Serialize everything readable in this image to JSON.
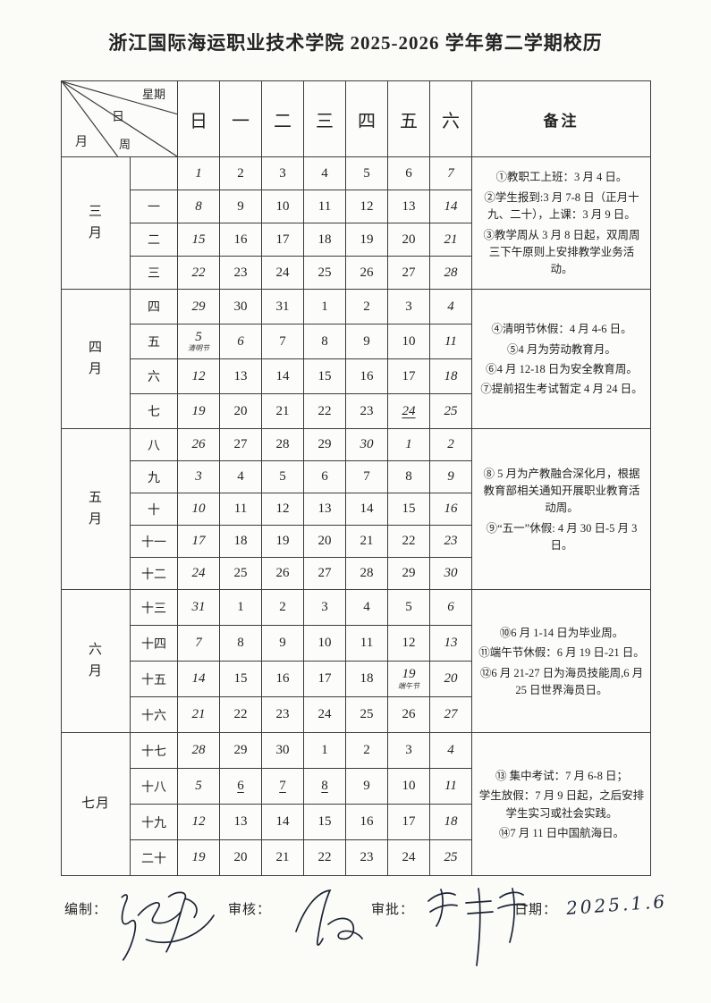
{
  "title": "浙江国际海运职业技术学院 2025-2026 学年第二学期校历",
  "table": {
    "corner": {
      "week_label": "星期",
      "day_label": "日",
      "month_label": "月",
      "zhou_label": "周"
    },
    "day_headers": [
      "日",
      "一",
      "二",
      "三",
      "四",
      "五",
      "六"
    ],
    "remarks_header": "备注",
    "months": [
      {
        "name": "三月",
        "stacked": true,
        "weeks": [
          {
            "label": "",
            "days": [
              "1|i",
              "2",
              "3",
              "4",
              "5",
              "6",
              "7|i"
            ]
          },
          {
            "label": "一",
            "days": [
              "8|i",
              "9",
              "10",
              "11",
              "12",
              "13",
              "14|i"
            ]
          },
          {
            "label": "二",
            "days": [
              "15|i",
              "16",
              "17",
              "18",
              "19",
              "20",
              "21|i"
            ]
          },
          {
            "label": "三",
            "days": [
              "22|i",
              "23",
              "24",
              "25",
              "26",
              "27",
              "28|i"
            ]
          }
        ],
        "remarks": [
          "①教职工上班：3 月 4 日。",
          "②学生报到:3 月 7-8 日（正月十九、二十），上课：3 月 9 日。",
          "③教学周从 3 月 8 日起，双周周三下午原则上安排教学业务活动。"
        ]
      },
      {
        "name": "四月",
        "stacked": true,
        "weeks": [
          {
            "label": "四",
            "days": [
              "29|i",
              "30",
              "31",
              "1",
              "2",
              "3",
              "4|i"
            ]
          },
          {
            "label": "五",
            "days": [
              "5|i|清明节",
              "6|i",
              "7",
              "8",
              "9",
              "10",
              "11|i"
            ]
          },
          {
            "label": "六",
            "days": [
              "12|i",
              "13",
              "14",
              "15",
              "16",
              "17",
              "18|i"
            ]
          },
          {
            "label": "七",
            "days": [
              "19|i",
              "20",
              "21",
              "22",
              "23",
              "24|iu",
              "25|i"
            ]
          }
        ],
        "remarks": [
          "④清明节休假：4 月 4-6 日。",
          "⑤4 月为劳动教育月。",
          "⑥4 月 12-18 日为安全教育周。",
          "⑦提前招生考试暂定 4 月 24 日。"
        ]
      },
      {
        "name": "五月",
        "stacked": true,
        "weeks": [
          {
            "label": "八",
            "days": [
              "26|i",
              "27",
              "28",
              "29",
              "30|i",
              "1|i",
              "2|i"
            ]
          },
          {
            "label": "九",
            "days": [
              "3|i",
              "4",
              "5",
              "6",
              "7",
              "8",
              "9|i"
            ]
          },
          {
            "label": "十",
            "days": [
              "10|i",
              "11",
              "12",
              "13",
              "14",
              "15",
              "16|i"
            ]
          },
          {
            "label": "十一",
            "days": [
              "17|i",
              "18",
              "19",
              "20",
              "21",
              "22",
              "23|i"
            ]
          },
          {
            "label": "十二",
            "days": [
              "24|i",
              "25",
              "26",
              "27",
              "28",
              "29",
              "30|i"
            ]
          }
        ],
        "remarks": [
          "⑧ 5 月为产教融合深化月，根据教育部相关通知开展职业教育活动周。",
          "⑨“五一”休假: 4 月 30 日-5 月 3 日。"
        ]
      },
      {
        "name": "六月",
        "stacked": true,
        "weeks": [
          {
            "label": "十三",
            "days": [
              "31|i",
              "1",
              "2",
              "3",
              "4",
              "5",
              "6|i"
            ]
          },
          {
            "label": "十四",
            "days": [
              "7|i",
              "8",
              "9",
              "10",
              "11",
              "12",
              "13|i"
            ]
          },
          {
            "label": "十五",
            "days": [
              "14|i",
              "15",
              "16",
              "17",
              "18",
              "19|i|端午节",
              "20|i"
            ]
          },
          {
            "label": "十六",
            "days": [
              "21|i",
              "22",
              "23",
              "24",
              "25",
              "26",
              "27|i"
            ]
          }
        ],
        "remarks": [
          "⑩6 月 1-14 日为毕业周。",
          "⑪端午节休假：6 月 19 日-21 日。",
          "⑫6 月 21-27 日为海员技能周,6 月 25 日世界海员日。"
        ]
      },
      {
        "name": "七月",
        "stacked": false,
        "weeks": [
          {
            "label": "十七",
            "days": [
              "28|i",
              "29",
              "30",
              "1",
              "2",
              "3",
              "4|i"
            ]
          },
          {
            "label": "十八",
            "days": [
              "5|i",
              "6|u",
              "7|u",
              "8|u",
              "9",
              "10",
              "11|i"
            ]
          },
          {
            "label": "十九",
            "days": [
              "12|i",
              "13",
              "14",
              "15",
              "16",
              "17",
              "18|i"
            ]
          },
          {
            "label": "二十",
            "days": [
              "19|i",
              "20",
              "21",
              "22",
              "23",
              "24",
              "25|i"
            ]
          }
        ],
        "remarks": [
          "⑬ 集中考试：7 月 6-8 日；",
          "学生放假：7 月 9 日起，之后安排学生实习或社会实践。",
          "⑭7 月 11 日中国航海日。"
        ]
      }
    ]
  },
  "footer": {
    "prepared_label": "编制：",
    "review_label": "审核：",
    "approve_label": "审批：",
    "date_label": "日期：",
    "date_value": "2025.1.6"
  },
  "colors": {
    "ink": "#3c3c3c",
    "signature_ink": "#1d2535",
    "paper": "#fbfbf8"
  }
}
